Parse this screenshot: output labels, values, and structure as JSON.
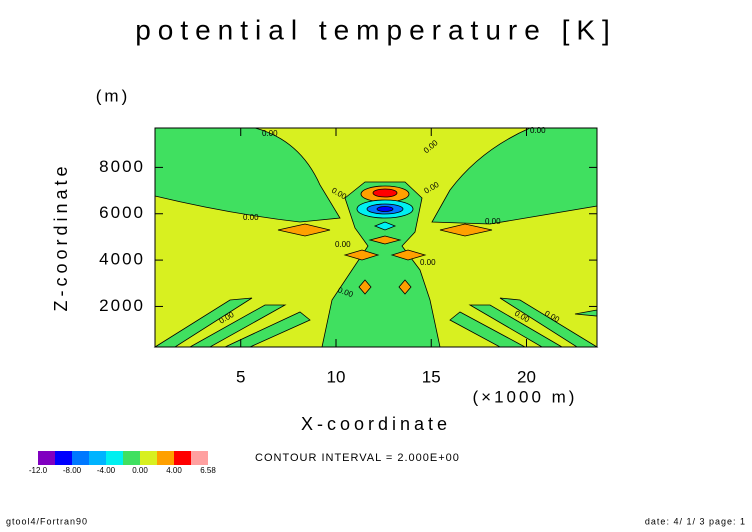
{
  "chart_data": {
    "type": "contour",
    "title": "potential temperature [K]",
    "x_label": "X-coordinate",
    "x_unit": "(×1000 m)",
    "y_label": "Z-coordinate",
    "y_unit": "(m)",
    "xlim": [
      0.5,
      23.7
    ],
    "ylim": [
      250,
      9700
    ],
    "xticks": [
      5,
      10,
      15,
      20
    ],
    "yticks": [
      2000,
      4000,
      6000,
      8000
    ],
    "contour_label": "0.00",
    "contour_interval_text": "CONTOUR INTERVAL = 2.000E+00",
    "colorbar": {
      "levels": [
        -12,
        -10,
        -8,
        -6,
        -4,
        -2,
        0,
        2,
        4,
        6,
        6.58
      ],
      "colors": [
        "#8000c0",
        "#0000ff",
        "#0078ff",
        "#00b4ff",
        "#00f0f0",
        "#40e060",
        "#d8f020",
        "#ffa000",
        "#ff0000",
        "#ffa0a0"
      ],
      "ticks": [
        {
          "value": -12,
          "label": "-12.0"
        },
        {
          "value": -8,
          "label": "-8.00"
        },
        {
          "value": -4,
          "label": "-4.00"
        },
        {
          "value": 0,
          "label": "0.00"
        },
        {
          "value": 4,
          "label": "4.00"
        },
        {
          "value": 6.58,
          "label": "6.58"
        }
      ]
    }
  },
  "footer": {
    "left": "gtool4/Fortran90",
    "right": "date: 4/ 1/ 3 page: 1"
  }
}
